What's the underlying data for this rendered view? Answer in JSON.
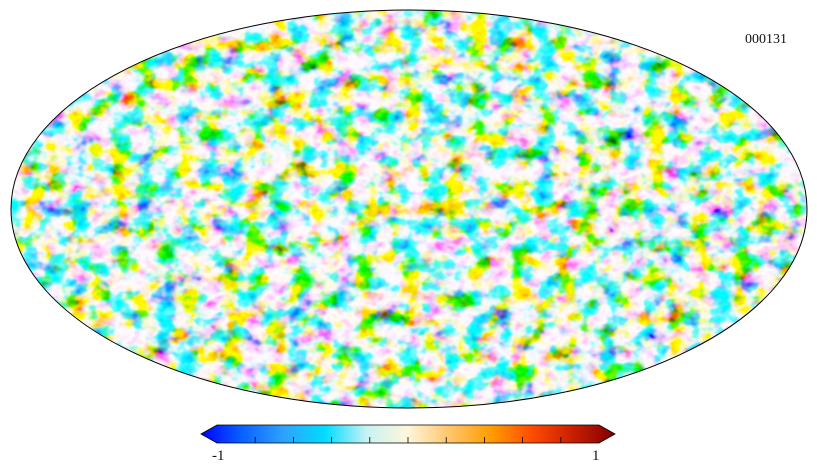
{
  "map": {
    "id_label": "000131",
    "projection": "mollweide",
    "colormap": "planck",
    "colors": [
      "#0000ff",
      "#0a62ff",
      "#2ea2ff",
      "#00ddff",
      "#c8f2f2",
      "#fff6dc",
      "#ffc56b",
      "#ff9d00",
      "#ff4a00",
      "#c81e00",
      "#800000"
    ]
  },
  "colorbar": {
    "min_label": "-1",
    "max_label": "1"
  }
}
